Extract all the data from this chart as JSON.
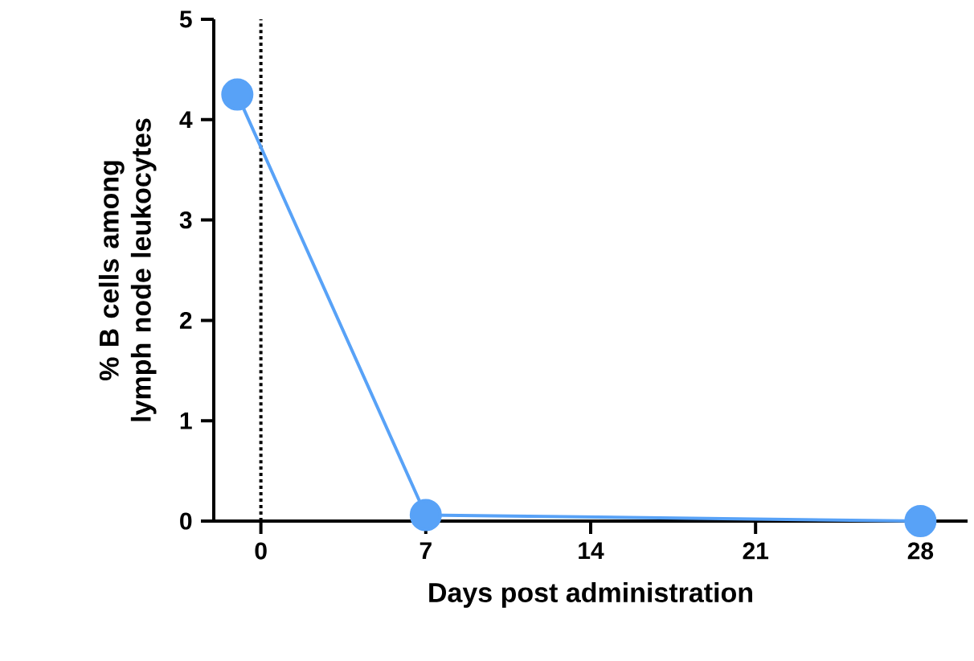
{
  "chart_data": {
    "type": "line",
    "xlabel": "Days post administration",
    "ylabel": "% B cells among lymph node leukocytes",
    "xlim": [
      -2,
      30
    ],
    "ylim": [
      0,
      5
    ],
    "xticks": [
      0,
      7,
      14,
      21,
      28
    ],
    "yticks": [
      0,
      1,
      2,
      3,
      4,
      5
    ],
    "x": [
      -1,
      7,
      28
    ],
    "series": [
      {
        "color": "#58a2f7",
        "values": [
          4.25,
          0.06,
          0.0
        ]
      }
    ],
    "ref_lines": [
      {
        "axis": "x",
        "value": 0,
        "line_style": "dotted",
        "color": "#000000"
      }
    ],
    "marker": "circle",
    "line_style": "solid"
  }
}
